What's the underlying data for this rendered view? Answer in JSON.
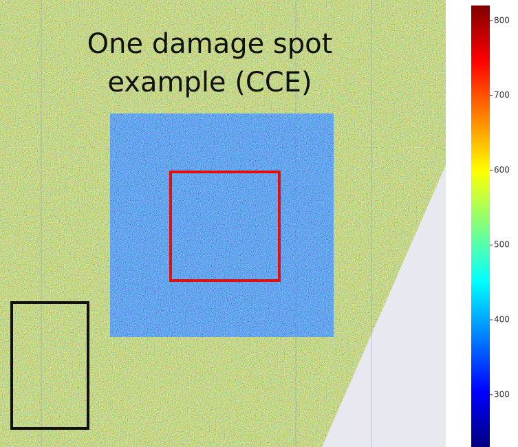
{
  "chart_data": {
    "type": "heatmap",
    "title": "One damage spot example (CCE)",
    "colorbar": {
      "lim": [
        230,
        820
      ],
      "ticks": [
        300,
        400,
        500,
        600,
        700,
        800
      ],
      "colors": [
        "#00007f",
        "#0000ff",
        "#0080ff",
        "#00ffff",
        "#80ff80",
        "#ffff00",
        "#ff8000",
        "#ff0000",
        "#7f0000"
      ]
    }
  }
}
